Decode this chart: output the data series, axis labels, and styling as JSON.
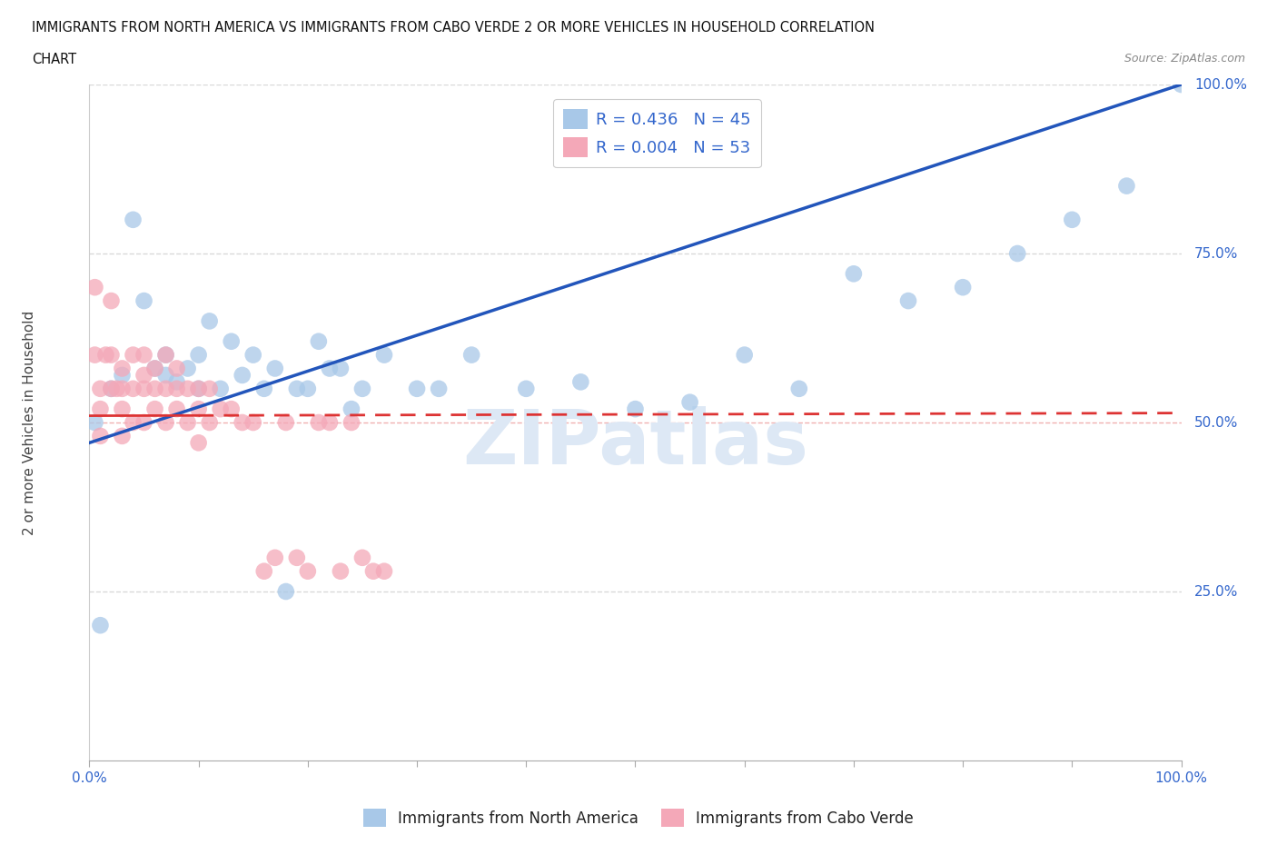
{
  "title_line1": "IMMIGRANTS FROM NORTH AMERICA VS IMMIGRANTS FROM CABO VERDE 2 OR MORE VEHICLES IN HOUSEHOLD CORRELATION",
  "title_line2": "CHART",
  "source": "Source: ZipAtlas.com",
  "ylabel": "2 or more Vehicles in Household",
  "xlim": [
    0,
    1.0
  ],
  "ylim": [
    0,
    1.0
  ],
  "blue_R": 0.436,
  "blue_N": 45,
  "pink_R": 0.004,
  "pink_N": 53,
  "blue_color": "#a8c8e8",
  "pink_color": "#f4a8b8",
  "blue_line_color": "#2255bb",
  "pink_line_color": "#dd3333",
  "watermark_text": "ZIPatlas",
  "background_color": "#ffffff",
  "grid_color": "#d8d8d8",
  "blue_scatter_x": [
    0.005,
    0.01,
    0.02,
    0.03,
    0.04,
    0.05,
    0.06,
    0.07,
    0.07,
    0.08,
    0.09,
    0.1,
    0.1,
    0.11,
    0.12,
    0.13,
    0.14,
    0.15,
    0.16,
    0.17,
    0.18,
    0.19,
    0.2,
    0.21,
    0.22,
    0.23,
    0.24,
    0.25,
    0.27,
    0.3,
    0.32,
    0.35,
    0.4,
    0.45,
    0.5,
    0.55,
    0.6,
    0.65,
    0.7,
    0.75,
    0.8,
    0.85,
    0.9,
    0.95,
    1.0
  ],
  "blue_scatter_y": [
    0.5,
    0.2,
    0.55,
    0.57,
    0.8,
    0.68,
    0.58,
    0.6,
    0.57,
    0.56,
    0.58,
    0.55,
    0.6,
    0.65,
    0.55,
    0.62,
    0.57,
    0.6,
    0.55,
    0.58,
    0.25,
    0.55,
    0.55,
    0.62,
    0.58,
    0.58,
    0.52,
    0.55,
    0.6,
    0.55,
    0.55,
    0.6,
    0.55,
    0.56,
    0.52,
    0.53,
    0.6,
    0.55,
    0.72,
    0.68,
    0.7,
    0.75,
    0.8,
    0.85,
    1.0
  ],
  "pink_scatter_x": [
    0.005,
    0.005,
    0.01,
    0.01,
    0.01,
    0.015,
    0.02,
    0.02,
    0.02,
    0.025,
    0.03,
    0.03,
    0.03,
    0.03,
    0.04,
    0.04,
    0.04,
    0.05,
    0.05,
    0.05,
    0.05,
    0.06,
    0.06,
    0.06,
    0.07,
    0.07,
    0.07,
    0.08,
    0.08,
    0.08,
    0.09,
    0.09,
    0.1,
    0.1,
    0.1,
    0.11,
    0.11,
    0.12,
    0.13,
    0.14,
    0.15,
    0.16,
    0.17,
    0.18,
    0.19,
    0.2,
    0.21,
    0.22,
    0.23,
    0.24,
    0.25,
    0.26,
    0.27
  ],
  "pink_scatter_y": [
    0.7,
    0.6,
    0.55,
    0.52,
    0.48,
    0.6,
    0.68,
    0.6,
    0.55,
    0.55,
    0.58,
    0.55,
    0.52,
    0.48,
    0.6,
    0.55,
    0.5,
    0.6,
    0.57,
    0.55,
    0.5,
    0.58,
    0.55,
    0.52,
    0.6,
    0.55,
    0.5,
    0.58,
    0.55,
    0.52,
    0.55,
    0.5,
    0.55,
    0.52,
    0.47,
    0.55,
    0.5,
    0.52,
    0.52,
    0.5,
    0.5,
    0.28,
    0.3,
    0.5,
    0.3,
    0.28,
    0.5,
    0.5,
    0.28,
    0.5,
    0.3,
    0.28,
    0.28
  ],
  "blue_line_x0": 0.0,
  "blue_line_y0": 0.47,
  "blue_line_x1": 1.0,
  "blue_line_y1": 1.0,
  "pink_line_x0": 0.0,
  "pink_line_y0": 0.51,
  "pink_line_x1": 1.0,
  "pink_line_y1": 0.514
}
